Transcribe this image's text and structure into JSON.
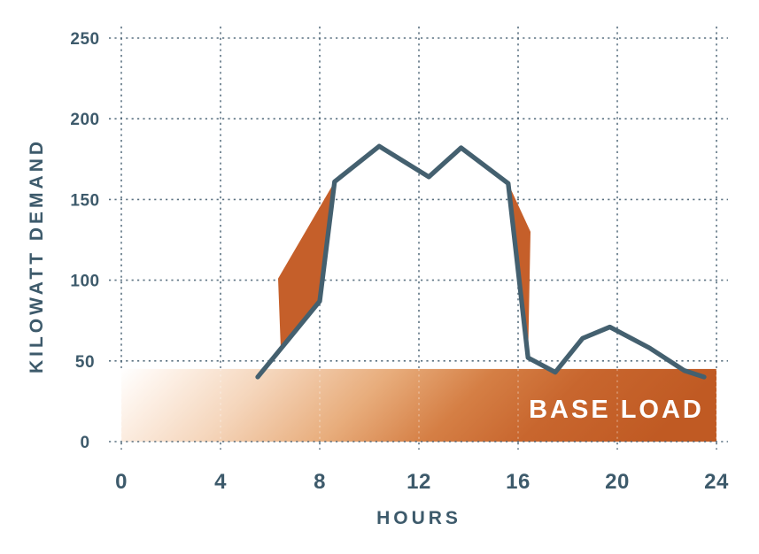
{
  "chart_data": {
    "type": "line",
    "title": "",
    "xlabel": "HOURS",
    "ylabel": "KILOWATT DEMAND",
    "x_ticks": [
      0,
      4,
      8,
      12,
      16,
      20,
      24
    ],
    "y_ticks": [
      0,
      50,
      100,
      150,
      200,
      250
    ],
    "xlim": [
      0,
      24
    ],
    "ylim": [
      0,
      250
    ],
    "grid": "dotted",
    "legend": "none",
    "series": [
      {
        "name": "kilowatt-demand",
        "color": "#44606f",
        "points": [
          [
            5.5,
            40
          ],
          [
            8.0,
            87
          ],
          [
            8.6,
            161
          ],
          [
            10.4,
            183
          ],
          [
            12.4,
            164
          ],
          [
            13.7,
            182
          ],
          [
            15.6,
            160
          ],
          [
            16.4,
            52
          ],
          [
            17.5,
            43
          ],
          [
            18.6,
            64
          ],
          [
            19.7,
            71
          ],
          [
            21.3,
            58
          ],
          [
            22.7,
            44
          ],
          [
            23.5,
            40
          ]
        ]
      }
    ],
    "annotations": {
      "base_load": {
        "label": "BASE LOAD",
        "x_range": [
          0,
          24
        ],
        "y_range": [
          0,
          45
        ],
        "label_color": "#ffffff",
        "gradient_stops": [
          {
            "offset": 0,
            "color": "#ffffff"
          },
          {
            "offset": 0.08,
            "color": "#fdf2e9"
          },
          {
            "offset": 0.25,
            "color": "#f5d6bc"
          },
          {
            "offset": 0.45,
            "color": "#e8ad7c"
          },
          {
            "offset": 0.62,
            "color": "#d57f45"
          },
          {
            "offset": 0.78,
            "color": "#c8662e"
          },
          {
            "offset": 1,
            "color": "#c05a23"
          }
        ]
      },
      "ramp_regions": [
        {
          "name": "morning-ramp-gap",
          "color": "#c55f2a",
          "points": [
            [
              6.43,
              57.5
            ],
            [
              6.32,
              101
            ],
            [
              8.6,
              161
            ],
            [
              8.0,
              87
            ]
          ]
        },
        {
          "name": "evening-ramp-gap",
          "color": "#c55f2a",
          "points": [
            [
              15.6,
              160
            ],
            [
              16.5,
              130
            ],
            [
              16.4,
              52
            ]
          ]
        }
      ]
    },
    "colors": {
      "axis_text": "#3d5a6b",
      "gridline": "#4a6375",
      "gridline_on_band": "rgba(255,255,255,0.32)",
      "demand_line": "#44606f",
      "accent_orange": "#c55f2a",
      "background": "#ffffff"
    }
  }
}
